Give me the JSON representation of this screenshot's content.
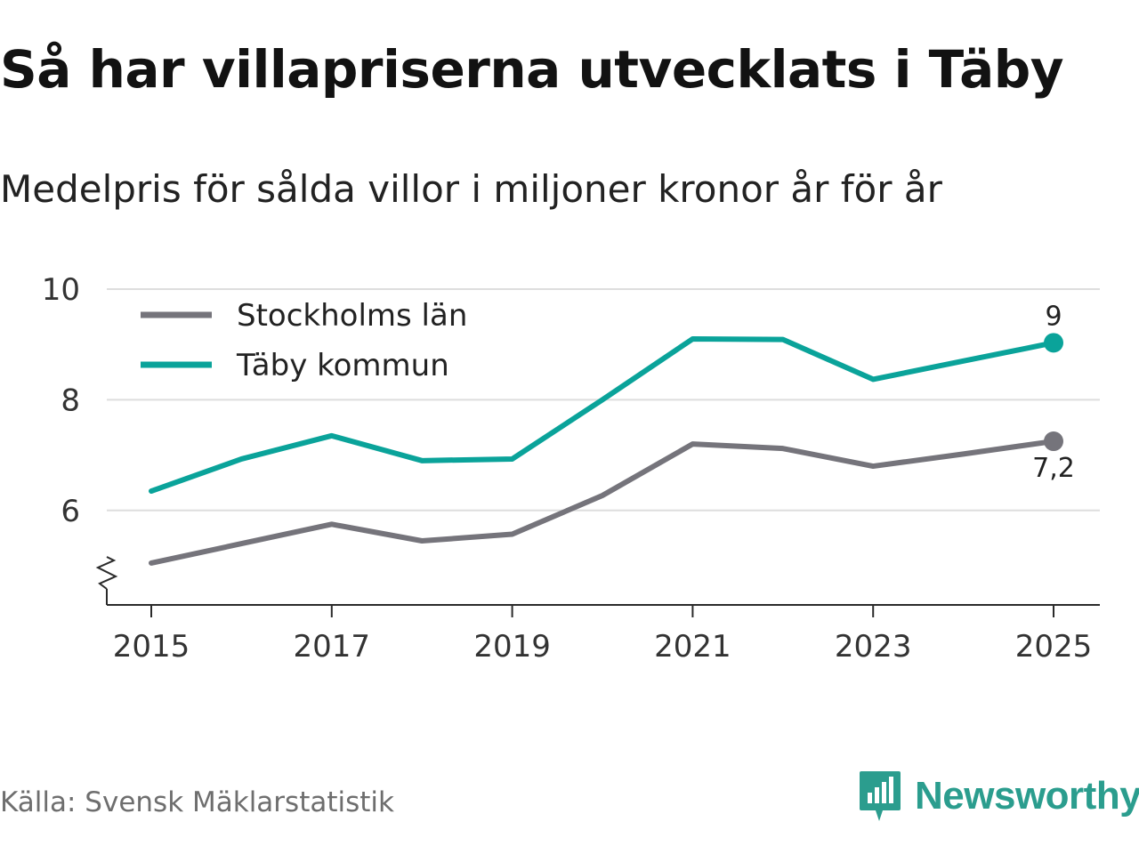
{
  "header": {
    "title": "Så har villapriserna utvecklats i Täby",
    "subtitle": "Medelpris för sålda villor i miljoner kronor år för år"
  },
  "footer": {
    "source": "Källa: Svensk Mäklarstatistik",
    "brand": "Newsworthy"
  },
  "colors": {
    "stockholm": "#75747b",
    "taby": "#0aa39a",
    "grid": "#dedede",
    "brand": "#2b9d8e"
  },
  "chart_data": {
    "type": "line",
    "title": "Så har villapriserna utvecklats i Täby",
    "subtitle": "Medelpris för sålda villor i miljoner kronor år för år",
    "xlabel": "",
    "ylabel": "",
    "x": [
      2015,
      2016,
      2017,
      2018,
      2019,
      2020,
      2021,
      2022,
      2023,
      2024,
      2025
    ],
    "xticks": [
      "2015",
      "2017",
      "2019",
      "2021",
      "2023",
      "2025"
    ],
    "yticks": [
      "6",
      "8",
      "10"
    ],
    "ylim": [
      4.3,
      10
    ],
    "axis_break": true,
    "grid": true,
    "legend_position": "top-left",
    "series": [
      {
        "name": "Stockholms län",
        "color": "#75747b",
        "values": [
          5.05,
          5.4,
          5.75,
          5.45,
          5.57,
          6.27,
          7.2,
          7.12,
          6.8,
          7.02,
          7.25
        ],
        "end_label": "7,2"
      },
      {
        "name": "Täby kommun",
        "color": "#0aa39a",
        "values": [
          6.35,
          6.93,
          7.35,
          6.9,
          6.93,
          8.0,
          9.1,
          9.09,
          8.37,
          8.7,
          9.03
        ],
        "end_label": "9"
      }
    ]
  }
}
